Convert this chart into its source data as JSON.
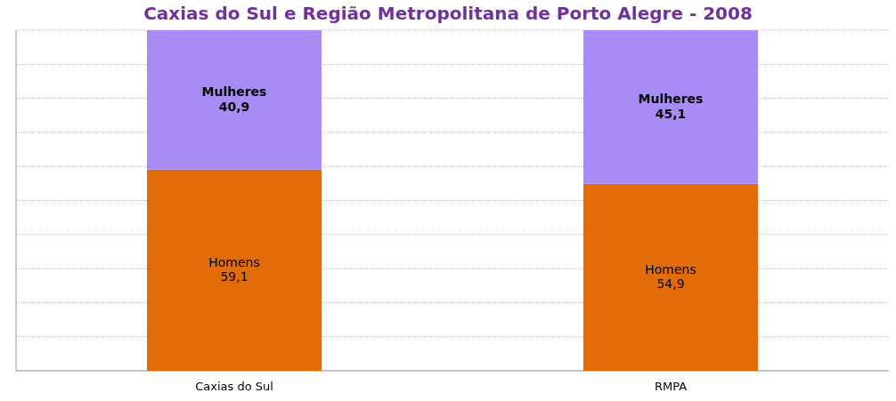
{
  "chart_data": {
    "type": "bar",
    "stacked": true,
    "title": "Caxias do Sul e Região Metropolitana de Porto Alegre - 2008",
    "categories": [
      "Caxias do Sul",
      "RMPA"
    ],
    "series": [
      {
        "name": "Homens",
        "color": "#e36c0a",
        "values": [
          59.1,
          54.9
        ],
        "value_labels": [
          "59,1",
          "54,9"
        ]
      },
      {
        "name": "Mulheres",
        "color": "#a98bf5",
        "values": [
          40.9,
          45.1
        ],
        "value_labels": [
          "40,9",
          "45,1"
        ]
      }
    ],
    "ylim": [
      0,
      100
    ],
    "yticks": [
      {
        "value": 0,
        "label": null
      },
      {
        "value": 10,
        "label": null
      },
      {
        "value": 20,
        "label": null
      },
      {
        "value": 30,
        "label": null
      },
      {
        "value": 40,
        "label": null
      },
      {
        "value": 50,
        "label": null
      },
      {
        "value": 60,
        "label": null
      },
      {
        "value": 70,
        "label": null
      },
      {
        "value": 80,
        "label": null
      },
      {
        "value": 90,
        "label": null
      },
      {
        "value": 100,
        "label": null
      }
    ],
    "grid": "y",
    "tick_labels": "x"
  }
}
